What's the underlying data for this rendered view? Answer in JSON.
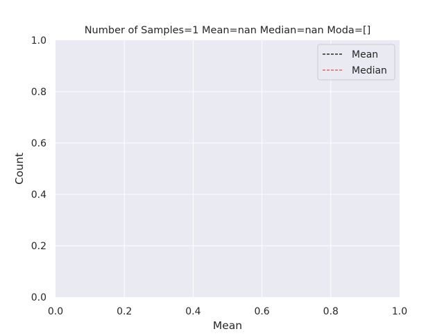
{
  "chart_data": {
    "type": "line",
    "title": "Number of Samples=1 Mean=nan Median=nan Moda=[]",
    "xlabel": "Mean",
    "ylabel": "Count",
    "xlim": [
      0.0,
      1.0
    ],
    "ylim": [
      0.0,
      1.0
    ],
    "x_ticks": [
      "0.0",
      "0.2",
      "0.4",
      "0.6",
      "0.8",
      "1.0"
    ],
    "y_ticks": [
      "0.0",
      "0.2",
      "0.4",
      "0.6",
      "0.8",
      "1.0"
    ],
    "x_tick_values": [
      0.0,
      0.2,
      0.4,
      0.6,
      0.8,
      1.0
    ],
    "y_tick_values": [
      0.0,
      0.2,
      0.4,
      0.6,
      0.8,
      1.0
    ],
    "grid": true,
    "legend_position": "top-right",
    "series": [
      {
        "name": "Mean",
        "values": [],
        "color": "#000000",
        "style": "dashed"
      },
      {
        "name": "Median",
        "values": [],
        "color": "#e74c3c",
        "style": "dashed"
      }
    ],
    "colors": {
      "background": "#eaeaf2",
      "grid": "#ffffff",
      "text": "#262626"
    }
  }
}
